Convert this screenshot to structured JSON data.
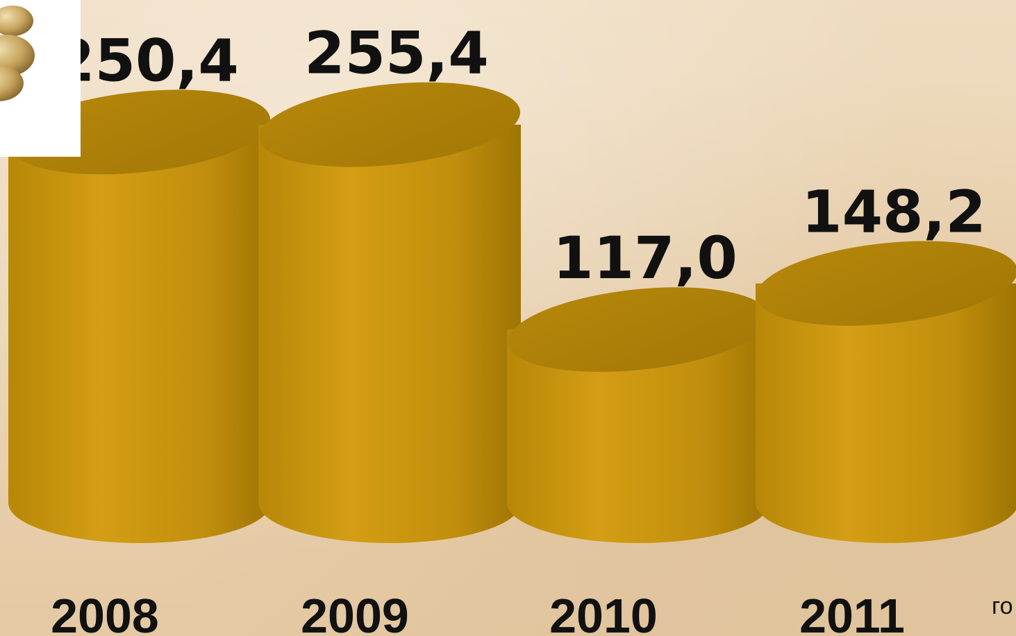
{
  "chart_data": {
    "type": "bar",
    "style": "3d-cylinder",
    "categories": [
      "2008",
      "2009",
      "2010",
      "2011"
    ],
    "values": [
      250.4,
      255.4,
      117.0,
      148.2
    ],
    "value_labels": [
      "250,4",
      "255,4",
      "117,0",
      "148,2"
    ],
    "xlabel": "го",
    "bar_color": "#c8960a",
    "grid": false,
    "legend": "none"
  }
}
